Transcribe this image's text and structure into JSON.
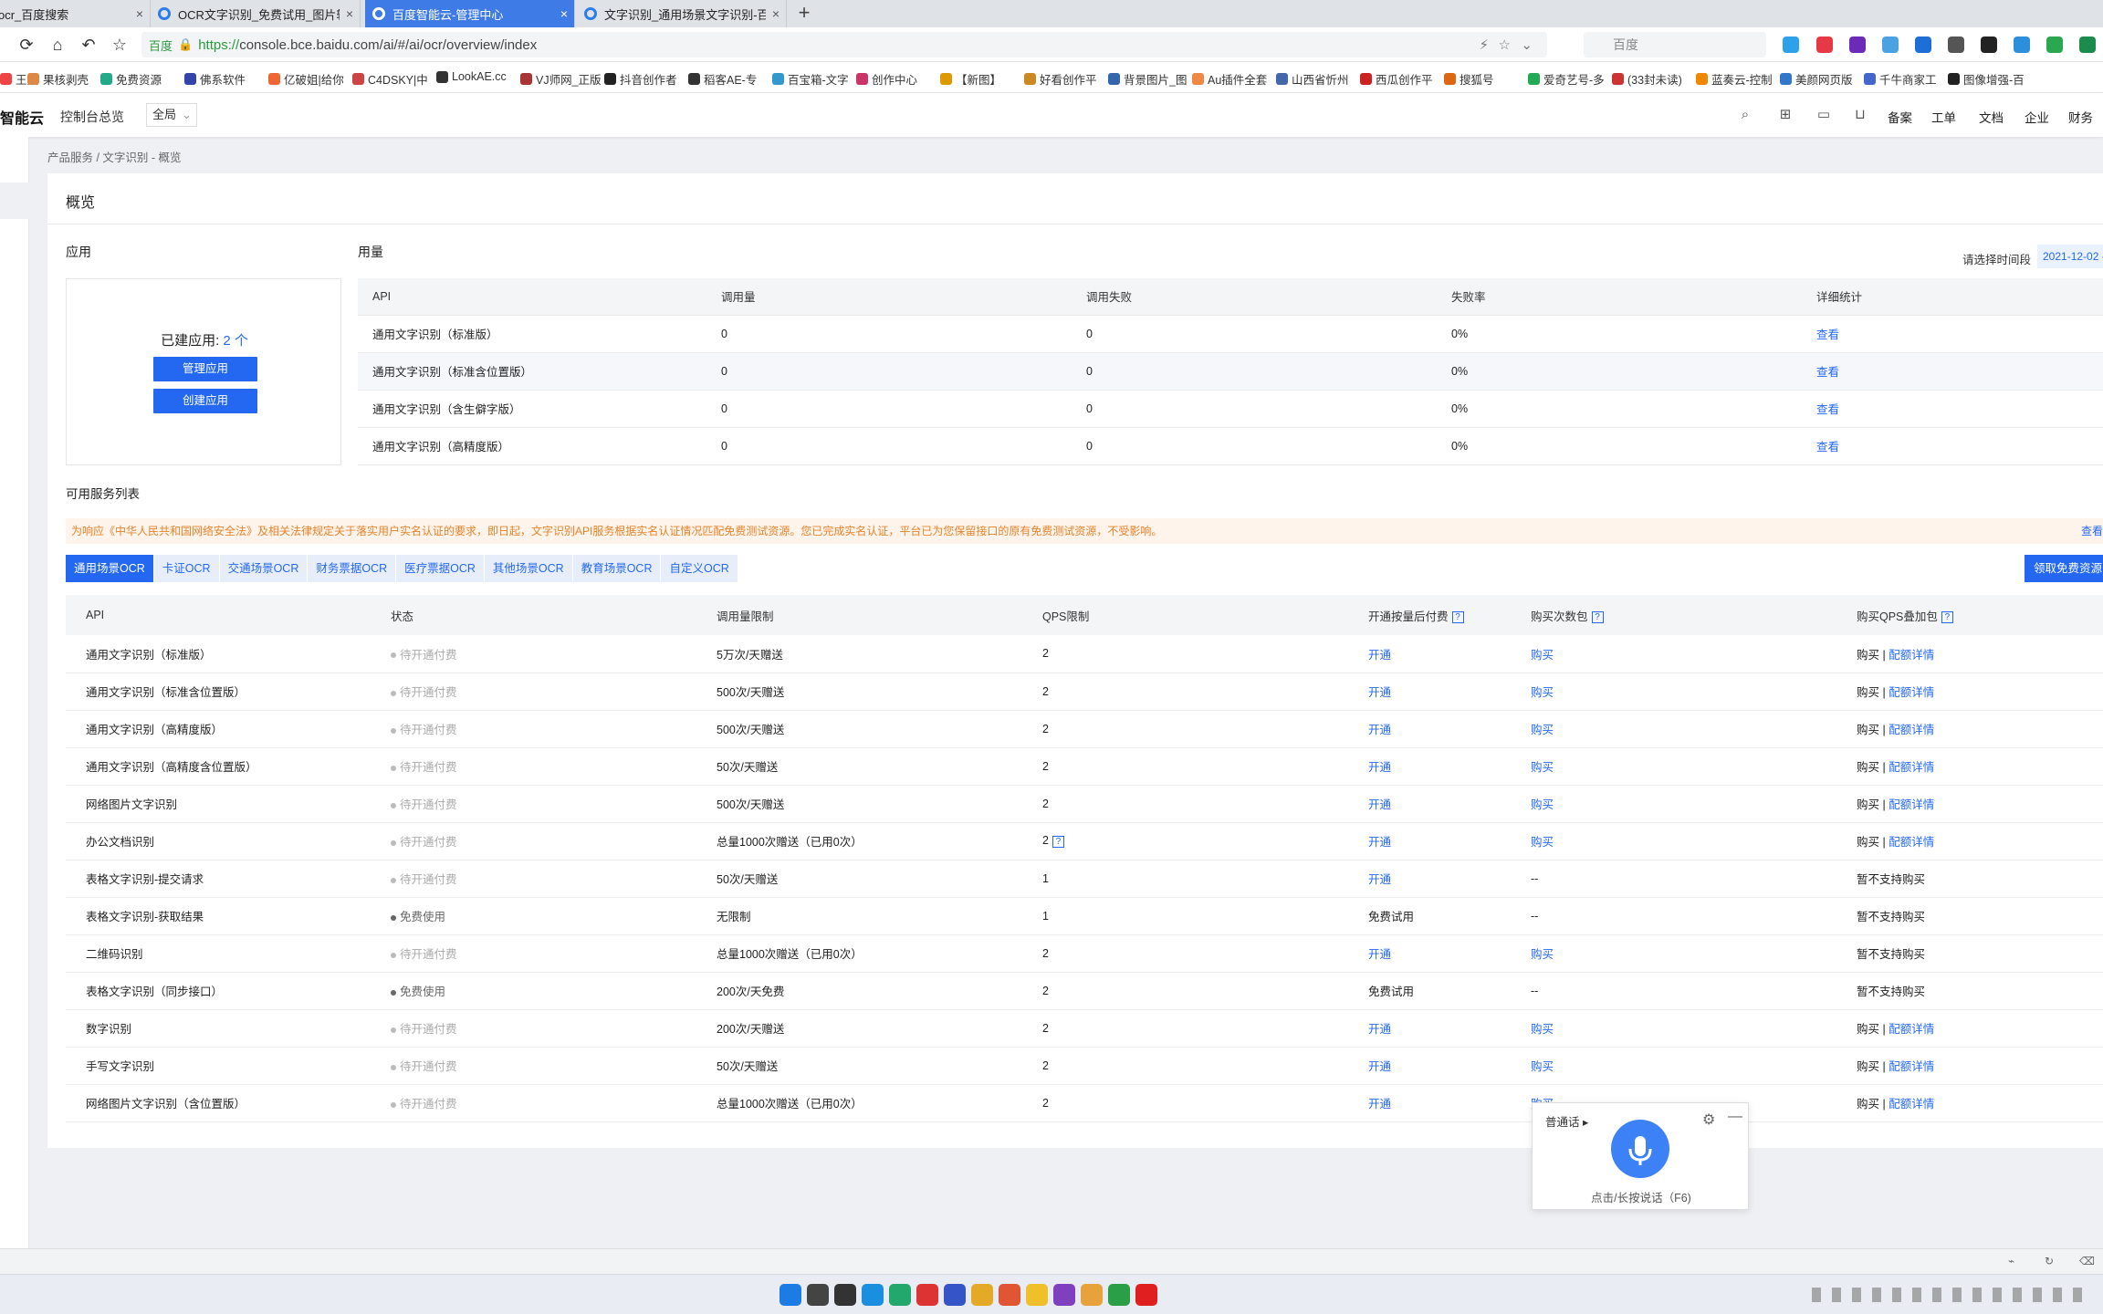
{
  "browser": {
    "tabs": [
      {
        "title": "ocr_百度搜索",
        "active": false
      },
      {
        "title": "OCR文字识别_免费试用_图片转",
        "active": false
      },
      {
        "title": "百度智能云-管理中心",
        "active": true
      },
      {
        "title": "文字识别_通用场景文字识别-百",
        "active": false
      }
    ],
    "new_tab": "+",
    "address": {
      "site_tag": "百度",
      "https": "https://",
      "url_rest": "console.bce.baidu.com/ai/#/ai/ocr/overview/index"
    },
    "search_placeholder": "百度",
    "bookmarks": [
      "王热",
      "果核剥壳",
      "免费资源",
      "佛系软件",
      "亿破姐|给你",
      "C4DSKY|中",
      "LookAE.cc",
      "VJ师网_正版",
      "抖音创作者",
      "稻客AE-专",
      "百宝箱-文字",
      "创作中心",
      "【新图】",
      "好看创作平",
      "背景图片_图",
      "Au插件全套",
      "山西省忻州",
      "西瓜创作平",
      "搜狐号",
      "爱奇艺号-多",
      "(33封未读)",
      "蓝奏云-控制",
      "美颜网页版",
      "千牛商家工",
      "图像增强-百"
    ]
  },
  "console": {
    "logo": "智能云",
    "overview_link": "控制台总览",
    "region": "全局",
    "top_links": [
      "备案",
      "工单",
      "文档",
      "企业",
      "财务"
    ],
    "breadcrumb": "产品服务 / 文字识别 - 概览",
    "title": "概览"
  },
  "apps": {
    "section": "应用",
    "count_label": "已建应用:",
    "count": "2 个",
    "manage_btn": "管理应用",
    "create_btn": "创建应用"
  },
  "usage": {
    "section": "用量",
    "date_label": "请选择时间段",
    "date_value": "2021-12-02 -",
    "headers": [
      "API",
      "调用量",
      "调用失败",
      "失败率",
      "详细统计"
    ],
    "rows": [
      {
        "api": "通用文字识别（标准版）",
        "calls": "0",
        "fails": "0",
        "rate": "0%",
        "detail": "查看"
      },
      {
        "api": "通用文字识别（标准含位置版）",
        "calls": "0",
        "fails": "0",
        "rate": "0%",
        "detail": "查看"
      },
      {
        "api": "通用文字识别（含生僻字版）",
        "calls": "0",
        "fails": "0",
        "rate": "0%",
        "detail": "查看"
      },
      {
        "api": "通用文字识别（高精度版）",
        "calls": "0",
        "fails": "0",
        "rate": "0%",
        "detail": "查看"
      }
    ]
  },
  "services": {
    "section": "可用服务列表",
    "notice": "为响应《中华人民共和国网络安全法》及相关法律规定关于落实用户实名认证的要求，即日起，文字识别API服务根据实名认证情况匹配免费测试资源。您已完成实名认证，平台已为您保留接口的原有免费测试资源，不受影响。",
    "notice_more": "查看",
    "categories": [
      "通用场景OCR",
      "卡证OCR",
      "交通场景OCR",
      "财务票据OCR",
      "医疗票据OCR",
      "其他场景OCR",
      "教育场景OCR",
      "自定义OCR"
    ],
    "free_btn": "领取免费资源",
    "headers": [
      "API",
      "状态",
      "调用量限制",
      "QPS限制",
      "开通按量后付费",
      "购买次数包",
      "购买QPS叠加包"
    ],
    "rows": [
      {
        "api": "通用文字识别（标准版）",
        "status": "待开通付费",
        "limit": "5万次/天赠送",
        "qps": "2",
        "qps_help": false,
        "pay": "开通",
        "pack": "购买",
        "qpspack": "购买 | 配额详情"
      },
      {
        "api": "通用文字识别（标准含位置版）",
        "status": "待开通付费",
        "limit": "500次/天赠送",
        "qps": "2",
        "qps_help": false,
        "pay": "开通",
        "pack": "购买",
        "qpspack": "购买 | 配额详情"
      },
      {
        "api": "通用文字识别（高精度版）",
        "status": "待开通付费",
        "limit": "500次/天赠送",
        "qps": "2",
        "qps_help": false,
        "pay": "开通",
        "pack": "购买",
        "qpspack": "购买 | 配额详情"
      },
      {
        "api": "通用文字识别（高精度含位置版）",
        "status": "待开通付费",
        "limit": "50次/天赠送",
        "qps": "2",
        "qps_help": false,
        "pay": "开通",
        "pack": "购买",
        "qpspack": "购买 | 配额详情"
      },
      {
        "api": "网络图片文字识别",
        "status": "待开通付费",
        "limit": "500次/天赠送",
        "qps": "2",
        "qps_help": false,
        "pay": "开通",
        "pack": "购买",
        "qpspack": "购买 | 配额详情"
      },
      {
        "api": "办公文档识别",
        "status": "待开通付费",
        "limit": "总量1000次赠送（已用0次）",
        "qps": "2",
        "qps_help": true,
        "pay": "开通",
        "pack": "购买",
        "qpspack": "购买 | 配额详情"
      },
      {
        "api": "表格文字识别-提交请求",
        "status": "待开通付费",
        "limit": "50次/天赠送",
        "qps": "1",
        "qps_help": false,
        "pay": "开通",
        "pack": "--",
        "qpspack": "暂不支持购买"
      },
      {
        "api": "表格文字识别-获取结果",
        "status": "免费使用",
        "limit": "无限制",
        "qps": "1",
        "qps_help": false,
        "pay": "免费试用",
        "pack": "--",
        "qpspack": "暂不支持购买"
      },
      {
        "api": "二维码识别",
        "status": "待开通付费",
        "limit": "总量1000次赠送（已用0次）",
        "qps": "2",
        "qps_help": false,
        "pay": "开通",
        "pack": "购买",
        "qpspack": "暂不支持购买"
      },
      {
        "api": "表格文字识别（同步接口）",
        "status": "免费使用",
        "limit": "200次/天免费",
        "qps": "2",
        "qps_help": false,
        "pay": "免费试用",
        "pack": "--",
        "qpspack": "暂不支持购买"
      },
      {
        "api": "数字识别",
        "status": "待开通付费",
        "limit": "200次/天赠送",
        "qps": "2",
        "qps_help": false,
        "pay": "开通",
        "pack": "购买",
        "qpspack": "购买 | 配额详情"
      },
      {
        "api": "手写文字识别",
        "status": "待开通付费",
        "limit": "50次/天赠送",
        "qps": "2",
        "qps_help": false,
        "pay": "开通",
        "pack": "购买",
        "qpspack": "购买 | 配额详情"
      },
      {
        "api": "网络图片文字识别（含位置版）",
        "status": "待开通付费",
        "limit": "总量1000次赠送（已用0次）",
        "qps": "2",
        "qps_help": false,
        "pay": "开通",
        "pack": "购买",
        "qpspack": "购买 | 配额详情"
      }
    ]
  },
  "voice": {
    "lang": "普通话",
    "tip": "点击/长按说话（F6)"
  },
  "colors": {
    "accent": "#2468f2",
    "notice": "#e6832a",
    "tab_active": "#3f7be6"
  }
}
